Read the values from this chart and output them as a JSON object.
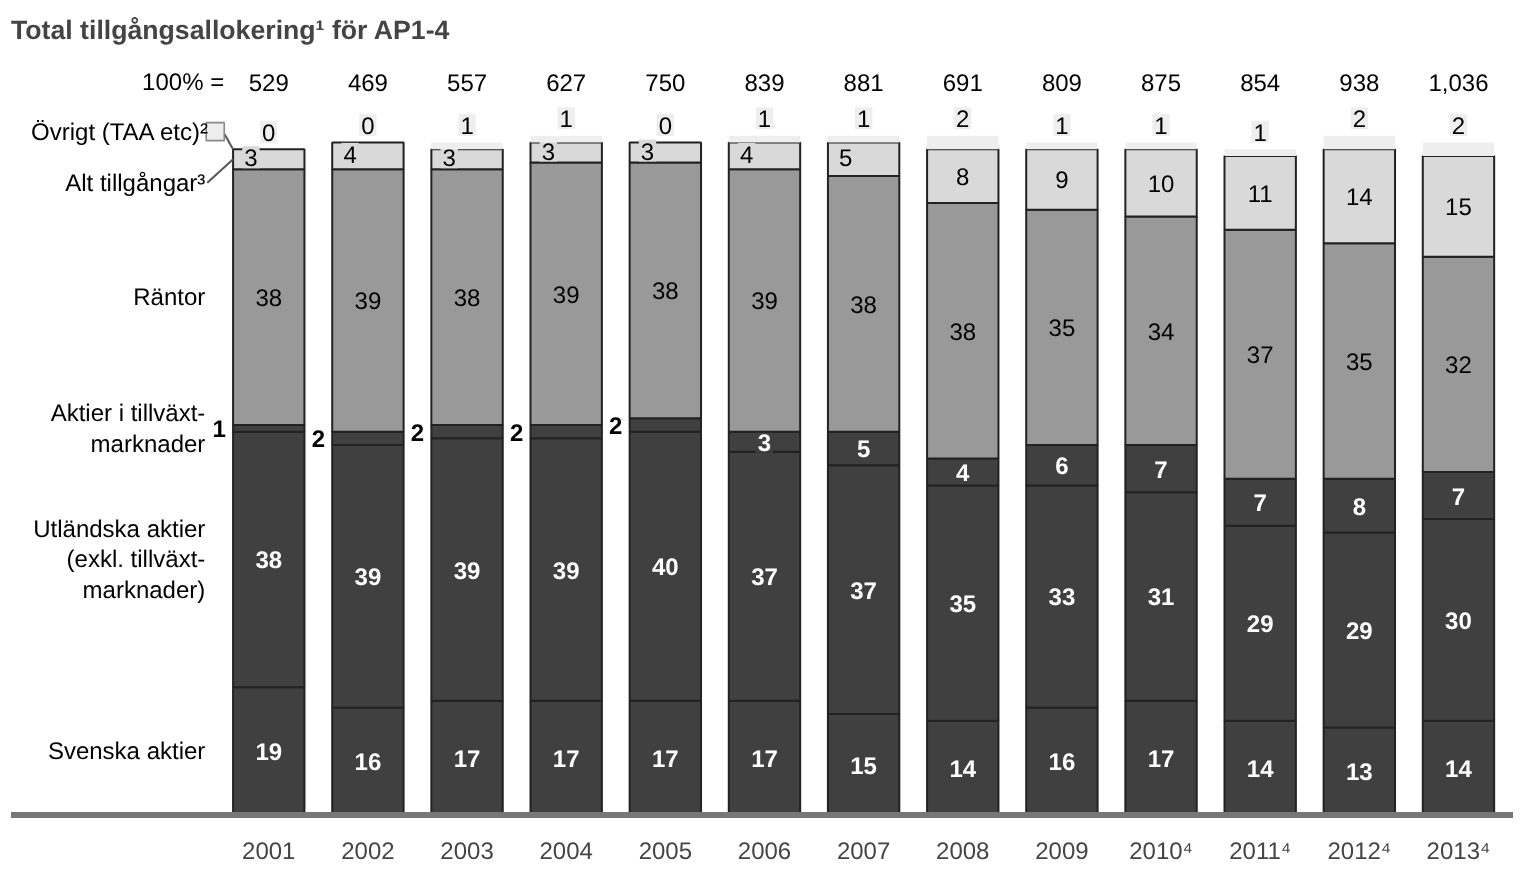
{
  "chart_data": {
    "type": "bar",
    "stacked": true,
    "data_labels": true,
    "title": "Total tillgångsallokering¹ för AP1-4",
    "categories": [
      "2001",
      "2002",
      "2003",
      "2004",
      "2005",
      "2006",
      "2007",
      "2008",
      "2009",
      "2010⁴",
      "2011⁴",
      "2012⁴",
      "2013⁴"
    ],
    "series": [
      {
        "name": "Svenska aktier",
        "color": "#404040",
        "values": [
          19,
          16,
          17,
          17,
          17,
          17,
          15,
          14,
          16,
          17,
          14,
          13,
          14
        ]
      },
      {
        "name": "Utländska aktier\n(exkl. tillväxt-\nmarknader)",
        "color": "#404040",
        "values": [
          38,
          39,
          39,
          39,
          40,
          37,
          37,
          35,
          33,
          31,
          29,
          29,
          30
        ]
      },
      {
        "name": "Aktier i tillväxt-\nmarknader",
        "color": "#404040",
        "values": [
          1,
          2,
          2,
          2,
          2,
          3,
          5,
          4,
          6,
          7,
          7,
          8,
          7
        ]
      },
      {
        "name": "Räntor",
        "color": "#999999",
        "values": [
          38,
          39,
          38,
          39,
          38,
          39,
          38,
          38,
          35,
          34,
          37,
          35,
          32
        ]
      },
      {
        "name": "Alt tillgångar³",
        "color": "#d9d9d9",
        "values": [
          3,
          4,
          3,
          3,
          3,
          4,
          5,
          8,
          9,
          10,
          11,
          14,
          15
        ]
      },
      {
        "name": "Övrigt (TAA etc)²",
        "color": "#eeeeee",
        "values": [
          0,
          0,
          1,
          1,
          0,
          1,
          1,
          2,
          1,
          1,
          1,
          2,
          2
        ]
      }
    ],
    "annotations": [
      "100% =",
      "529",
      "469",
      "557",
      "627",
      "750",
      "839",
      "881",
      "691",
      "809",
      "875",
      "854",
      "938",
      "1,036"
    ]
  }
}
